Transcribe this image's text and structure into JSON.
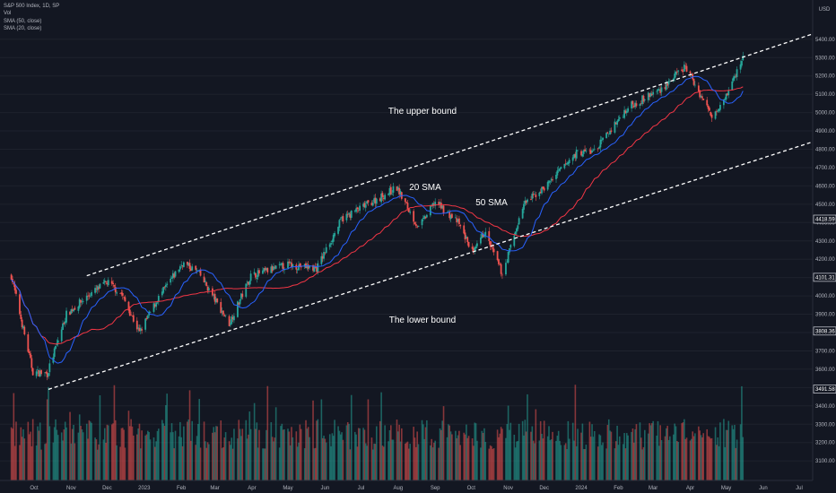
{
  "legend": {
    "symbol": "S&P 500 Index, 1D, SP",
    "volume": "Vol",
    "sma50": "SMA (50, close)",
    "sma20": "SMA (20, close)"
  },
  "currency": "USD",
  "colors": {
    "background": "#131722",
    "up": "#26a69a",
    "down": "#ef5350",
    "sma20": "#2962ff",
    "sma50": "#f23645",
    "grid": "#1e222d",
    "text": "#b2b5be"
  },
  "chart_data": {
    "type": "candlestick",
    "x_ticks": [
      "Oct",
      "Nov",
      "Dec",
      "2023",
      "Feb",
      "Mar",
      "Apr",
      "May",
      "Jun",
      "Jul",
      "Aug",
      "Sep",
      "Oct",
      "Nov",
      "Dec",
      "2024",
      "Feb",
      "Mar",
      "Apr",
      "May",
      "Jun",
      "Jul"
    ],
    "y_ticks": [
      3100,
      3200,
      3300,
      3400,
      3500,
      3600,
      3700,
      3800,
      3900,
      4000,
      4100,
      4200,
      4300,
      4400,
      4500,
      4600,
      4700,
      4800,
      4900,
      5000,
      5100,
      5200,
      5300,
      5400
    ],
    "ylim": [
      3050,
      5500
    ],
    "price_tags": [
      4418.59,
      4101.31,
      3808.36,
      3491.58
    ],
    "annotations": [
      {
        "text": "The upper bound"
      },
      {
        "text": "The lower bound"
      },
      {
        "text": "20 SMA",
        "color": "#2962ff"
      },
      {
        "text": "50 SMA",
        "color": "#f23645"
      }
    ],
    "channel": {
      "upper": {
        "from": [
          "2022-11-14",
          4110
        ],
        "to": [
          "2024-07-31",
          5470
        ]
      },
      "lower": {
        "from": [
          "2022-10-13",
          3490
        ],
        "to": [
          "2024-07-31",
          4880
        ]
      }
    },
    "price_path": [
      [
        "2022-09-12",
        4110
      ],
      [
        "2022-09-30",
        3585
      ],
      [
        "2022-10-12",
        3575
      ],
      [
        "2022-10-28",
        3900
      ],
      [
        "2022-11-15",
        4000
      ],
      [
        "2022-12-01",
        4075
      ],
      [
        "2022-12-13",
        4010
      ],
      [
        "2022-12-28",
        3800
      ],
      [
        "2023-01-12",
        3980
      ],
      [
        "2023-02-02",
        4180
      ],
      [
        "2023-02-15",
        4130
      ],
      [
        "2023-03-13",
        3850
      ],
      [
        "2023-03-31",
        4110
      ],
      [
        "2023-05-01",
        4170
      ],
      [
        "2023-05-25",
        4150
      ],
      [
        "2023-06-15",
        4420
      ],
      [
        "2023-07-31",
        4590
      ],
      [
        "2023-08-18",
        4370
      ],
      [
        "2023-09-01",
        4515
      ],
      [
        "2023-09-20",
        4400
      ],
      [
        "2023-10-03",
        4230
      ],
      [
        "2023-10-12",
        4350
      ],
      [
        "2023-10-27",
        4120
      ],
      [
        "2023-11-14",
        4500
      ],
      [
        "2023-12-01",
        4590
      ],
      [
        "2023-12-28",
        4780
      ],
      [
        "2024-01-12",
        4790
      ],
      [
        "2024-02-09",
        5030
      ],
      [
        "2024-03-08",
        5130
      ],
      [
        "2024-03-28",
        5250
      ],
      [
        "2024-04-19",
        4980
      ],
      [
        "2024-05-03",
        5120
      ],
      [
        "2024-05-15",
        5300
      ]
    ]
  }
}
